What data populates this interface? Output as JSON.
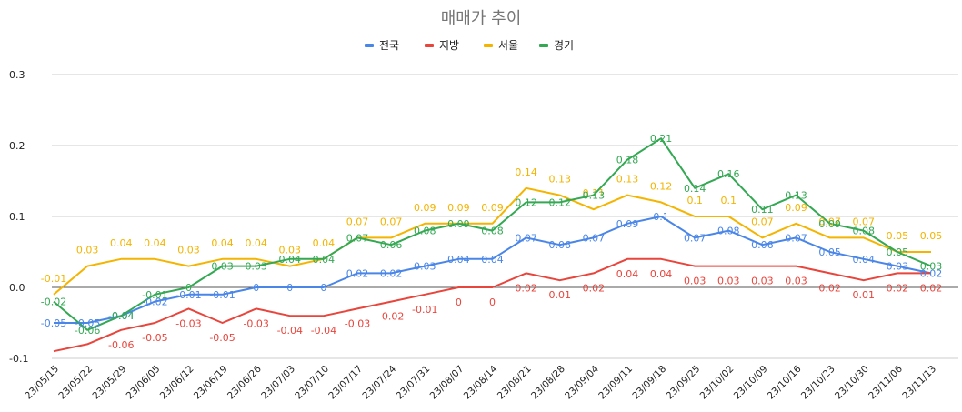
{
  "chart_data": {
    "type": "line",
    "title": "매매가 추이",
    "xlabel": "",
    "ylabel": "",
    "ylim": [
      -0.1,
      0.3
    ],
    "yticks": [
      -0.1,
      0.0,
      0.1,
      0.2,
      0.3
    ],
    "ytick_labels": [
      "-0.1",
      "0.0",
      "0.1",
      "0.2",
      "0.3"
    ],
    "grid": true,
    "legend_position": "top-center",
    "categories": [
      "23/05/15",
      "23/05/22",
      "23/05/29",
      "23/06/05",
      "23/06/12",
      "23/06/19",
      "23/06/26",
      "23/07/03",
      "23/07/10",
      "23/07/17",
      "23/07/24",
      "23/07/31",
      "23/08/07",
      "23/08/14",
      "23/08/21",
      "23/08/28",
      "23/09/04",
      "23/09/11",
      "23/09/18",
      "23/09/25",
      "23/10/02",
      "23/10/09",
      "23/10/16",
      "23/10/23",
      "23/10/30",
      "23/11/06",
      "23/11/13"
    ],
    "series": [
      {
        "name": "전국",
        "color": "#4a86e8",
        "values": [
          -0.05,
          -0.05,
          -0.04,
          -0.02,
          -0.01,
          -0.01,
          0,
          0,
          0,
          0.02,
          0.02,
          0.03,
          0.04,
          0.04,
          0.07,
          0.06,
          0.07,
          0.09,
          0.1,
          0.07,
          0.08,
          0.06,
          0.07,
          0.05,
          0.04,
          0.03,
          0.02
        ],
        "labels": [
          "-0.05",
          "-0.05",
          "-0.04",
          "-0.02",
          "-0.01",
          "-0.01",
          "0",
          "0",
          "0",
          "0.02",
          "0.02",
          "0.03",
          "0.04",
          "0.04",
          "0.07",
          "0.06",
          "0.07",
          "0.09",
          "0.1",
          "0.07",
          "0.08",
          "0.06",
          "0.07",
          "0.05",
          "0.04",
          "0.03",
          "0.02"
        ]
      },
      {
        "name": "지방",
        "color": "#e8453c",
        "values": [
          -0.09,
          -0.08,
          -0.06,
          -0.05,
          -0.03,
          -0.05,
          -0.03,
          -0.04,
          -0.04,
          -0.03,
          -0.02,
          -0.01,
          0,
          0,
          0.02,
          0.01,
          0.02,
          0.04,
          0.04,
          0.03,
          0.03,
          0.03,
          0.03,
          0.02,
          0.01,
          0.02,
          0.02
        ],
        "labels": [
          "",
          "",
          "-0.06",
          "-0.05",
          "-0.03",
          "-0.05",
          "-0.03",
          "-0.04",
          "-0.04",
          "-0.03",
          "-0.02",
          "-0.01",
          "0",
          "0",
          "0.02",
          "0.01",
          "0.02",
          "0.04",
          "0.04",
          "0.03",
          "0.03",
          "0.03",
          "0.03",
          "0.02",
          "0.01",
          "0.02",
          "0.02"
        ]
      },
      {
        "name": "서울",
        "color": "#f4b400",
        "values": [
          -0.01,
          0.03,
          0.04,
          0.04,
          0.03,
          0.04,
          0.04,
          0.03,
          0.04,
          0.07,
          0.07,
          0.09,
          0.09,
          0.09,
          0.14,
          0.13,
          0.11,
          0.13,
          0.12,
          0.1,
          0.1,
          0.07,
          0.09,
          0.07,
          0.07,
          0.05,
          0.05
        ],
        "labels": [
          "-0.01",
          "0.03",
          "0.04",
          "0.04",
          "0.03",
          "0.04",
          "0.04",
          "0.03",
          "0.04",
          "0.07",
          "0.07",
          "0.09",
          "0.09",
          "0.09",
          "0.14",
          "0.13",
          "0.11",
          "0.13",
          "0.12",
          "0.1",
          "0.1",
          "0.07",
          "0.09",
          "0.07",
          "0.07",
          "0.05",
          "0.05"
        ]
      },
      {
        "name": "경기",
        "color": "#34a853",
        "values": [
          -0.02,
          -0.06,
          -0.04,
          -0.01,
          0,
          0.03,
          0.03,
          0.04,
          0.04,
          0.07,
          0.06,
          0.08,
          0.09,
          0.08,
          0.12,
          0.12,
          0.13,
          0.18,
          0.21,
          0.14,
          0.16,
          0.11,
          0.13,
          0.09,
          0.08,
          0.05,
          0.03
        ],
        "labels": [
          "-0.02",
          "-0.06",
          "-0.04",
          "-0.01",
          "0",
          "0.03",
          "0.03",
          "0.04",
          "0.04",
          "0.07",
          "0.06",
          "0.08",
          "0.09",
          "0.08",
          "0.12",
          "0.12",
          "0.13",
          "0.18",
          "0.21",
          "0.14",
          "0.16",
          "0.11",
          "0.13",
          "0.09",
          "0.08",
          "0.05",
          "0.03"
        ]
      }
    ]
  }
}
